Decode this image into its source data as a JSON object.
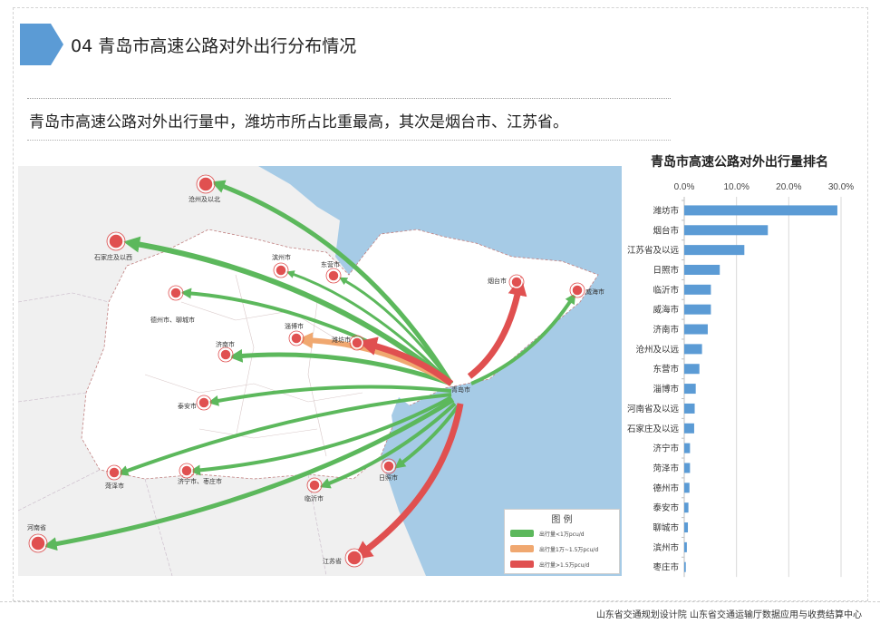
{
  "header": {
    "title": "04  青岛市高速公路对外出行分布情况",
    "summary": "青岛市高速公路对外出行量中，潍坊市所占比重最高，其次是烟台市、江苏省。"
  },
  "map": {
    "origin_label": "青岛市",
    "city_labels": [
      {
        "key": "cangzhou",
        "label": "沧州及以北",
        "flow": "medium"
      },
      {
        "key": "shijiazhuang",
        "label": "石家庄及以西",
        "flow": "medium"
      },
      {
        "key": "binzhou",
        "label": "滨州市",
        "flow": "medium"
      },
      {
        "key": "dongying",
        "label": "东营市",
        "flow": "medium"
      },
      {
        "key": "dezhou",
        "label": "德州市、聊城市",
        "flow": "medium"
      },
      {
        "key": "zibo",
        "label": "淄博市",
        "flow": "high"
      },
      {
        "key": "weifang",
        "label": "潍坊市",
        "flow": "very-high"
      },
      {
        "key": "jinan",
        "label": "济南市",
        "flow": "medium"
      },
      {
        "key": "taian",
        "label": "泰安市",
        "flow": "medium"
      },
      {
        "key": "heze",
        "label": "菏泽市",
        "flow": "medium"
      },
      {
        "key": "jining",
        "label": "济宁市、枣庄市",
        "flow": "medium"
      },
      {
        "key": "linyi",
        "label": "临沂市",
        "flow": "medium"
      },
      {
        "key": "rizhao",
        "label": "日照市",
        "flow": "medium"
      },
      {
        "key": "henan",
        "label": "河南省",
        "flow": "medium"
      },
      {
        "key": "jiangsu",
        "label": "江苏省",
        "flow": "very-high"
      },
      {
        "key": "yantai",
        "label": "烟台市",
        "flow": "very-high"
      },
      {
        "key": "weihai",
        "label": "威海市",
        "flow": "medium"
      }
    ],
    "legend": {
      "title": "图 例",
      "items": [
        {
          "label": "出行量<1万pcu/d",
          "color": "#5cb85c"
        },
        {
          "label": "出行量1万~1.5万pcu/d",
          "color": "#f0a870"
        },
        {
          "label": "出行量>1.5万pcu/d",
          "color": "#e05050"
        }
      ]
    }
  },
  "chart_data": {
    "type": "bar",
    "orientation": "horizontal",
    "title": "青岛市高速公路对外出行量排名",
    "categories": [
      "潍坊市",
      "烟台市",
      "江苏省及以远",
      "日照市",
      "临沂市",
      "威海市",
      "济南市",
      "沧州及以远",
      "东营市",
      "淄博市",
      "河南省及以远",
      "石家庄及以远",
      "济宁市",
      "菏泽市",
      "德州市",
      "泰安市",
      "聊城市",
      "滨州市",
      "枣庄市"
    ],
    "values": [
      29.3,
      16.0,
      11.5,
      6.8,
      5.1,
      5.1,
      4.5,
      3.4,
      2.9,
      2.2,
      2.0,
      1.9,
      1.1,
      1.1,
      1.0,
      0.8,
      0.7,
      0.5,
      0.3
    ],
    "xlim": [
      0,
      30
    ],
    "xticks": [
      "0.0%",
      "10.0%",
      "20.0%",
      "30.0%"
    ],
    "bar_color": "#5b9bd5",
    "grid": true
  },
  "footer": {
    "credits": "山东省交通规划设计院  山东省交通运输厅数据应用与收费结算中心"
  },
  "colors": {
    "accent": "#5b9bd5",
    "sea": "#a6cbe6",
    "land": "#f0f0f0",
    "flow_low": "#5cb85c",
    "flow_mid": "#f0a870",
    "flow_high": "#e05050"
  }
}
